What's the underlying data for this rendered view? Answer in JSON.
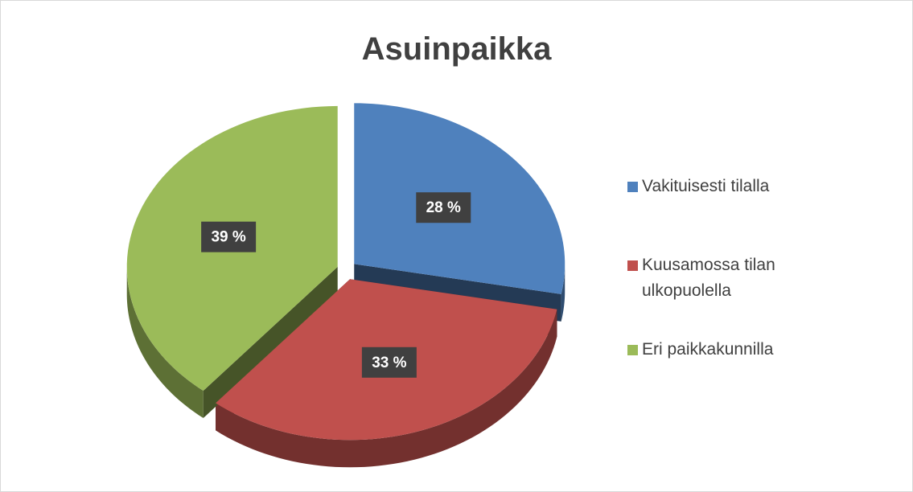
{
  "chart_data": {
    "type": "pie",
    "title": "Asuinpaikka",
    "categories": [
      "Vakituisesti tilalla",
      "Kuusamossa tilan ulkopuolella",
      "Eri paikkakunnilla"
    ],
    "values": [
      28,
      33,
      39
    ],
    "value_labels": [
      "28 %",
      "33 %",
      "39 %"
    ],
    "colors": [
      "#4f81bd",
      "#c0504d",
      "#9bbb59"
    ],
    "legend": "right"
  }
}
